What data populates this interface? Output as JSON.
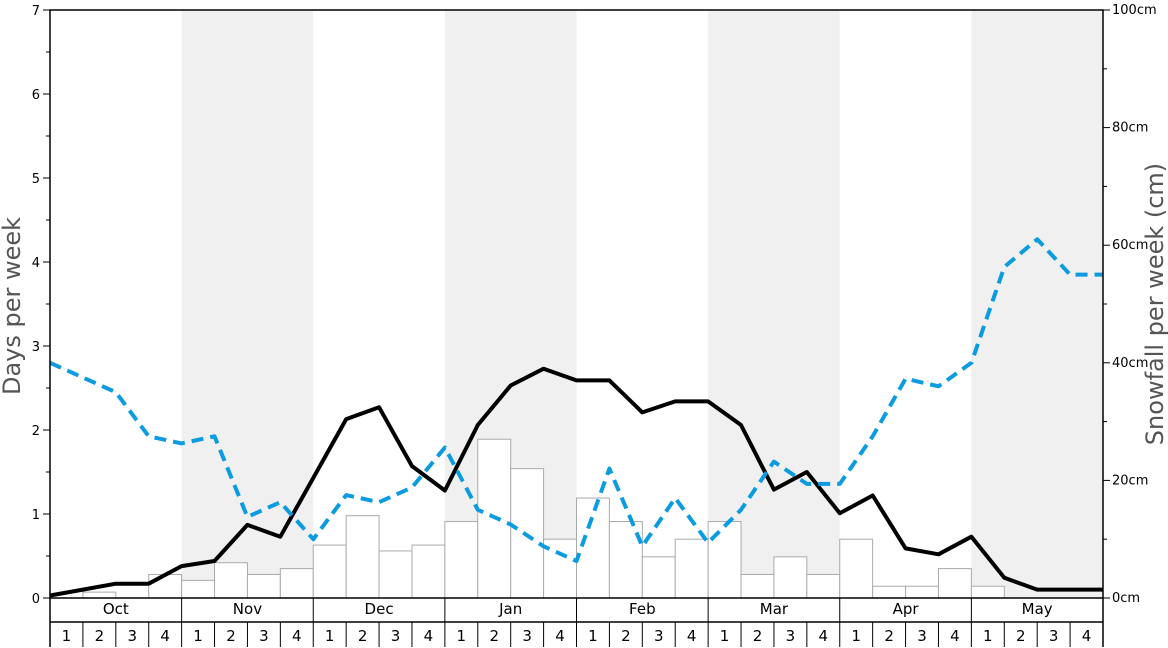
{
  "chart_data": {
    "type": "bar",
    "left_axis": {
      "label": "Days per week",
      "range": [
        0,
        7
      ],
      "ticks": [
        "0",
        "1",
        "2",
        "3",
        "4",
        "5",
        "6",
        "7"
      ]
    },
    "right_axis": {
      "label": "Snowfall per week (cm)",
      "range": [
        0,
        100
      ],
      "ticks": [
        "0cm",
        "20cm",
        "40cm",
        "60cm",
        "80cm",
        "100cm"
      ]
    },
    "months": [
      "Oct",
      "Nov",
      "Dec",
      "Jan",
      "Feb",
      "Mar",
      "Apr",
      "May"
    ],
    "week_labels": [
      "1",
      "2",
      "3",
      "4"
    ],
    "grid": false,
    "band_colors": [
      "#ffffff",
      "#f0f0f0"
    ],
    "series": [
      {
        "kind": "bar",
        "axis": "right",
        "color": "#ffffff",
        "stroke": "#aaaaaa",
        "values": [
          0,
          1,
          0,
          4,
          3,
          6,
          4,
          5,
          9,
          14,
          8,
          9,
          13,
          27,
          22,
          10,
          17,
          13,
          7,
          10,
          13,
          4,
          7,
          4,
          10,
          2,
          2,
          5,
          2,
          0,
          0,
          0
        ]
      },
      {
        "kind": "line",
        "axis": "left",
        "style": "solid",
        "color": "#000000",
        "values": [
          0.03,
          0.1,
          0.17,
          0.17,
          0.38,
          0.44,
          0.87,
          0.73,
          1.43,
          2.13,
          2.27,
          1.57,
          1.28,
          2.06,
          2.53,
          2.73,
          2.59,
          2.59,
          2.21,
          2.34,
          2.34,
          2.06,
          1.29,
          1.5,
          1.01,
          1.22,
          0.59,
          0.52,
          0.73,
          0.24,
          0.1,
          0.1,
          0.1
        ]
      },
      {
        "kind": "line",
        "axis": "right",
        "style": "dashed",
        "color": "#0a9be0",
        "values": [
          40,
          37.5,
          35,
          27.5,
          26.3,
          27.5,
          13.8,
          16.3,
          10,
          17.5,
          16.3,
          18.8,
          25.6,
          15,
          12.5,
          8.8,
          6.3,
          22,
          8.8,
          17,
          9.4,
          15,
          23.2,
          19.4,
          19.4,
          27.5,
          37.3,
          36,
          40,
          56.3,
          61,
          55,
          55
        ]
      }
    ]
  }
}
